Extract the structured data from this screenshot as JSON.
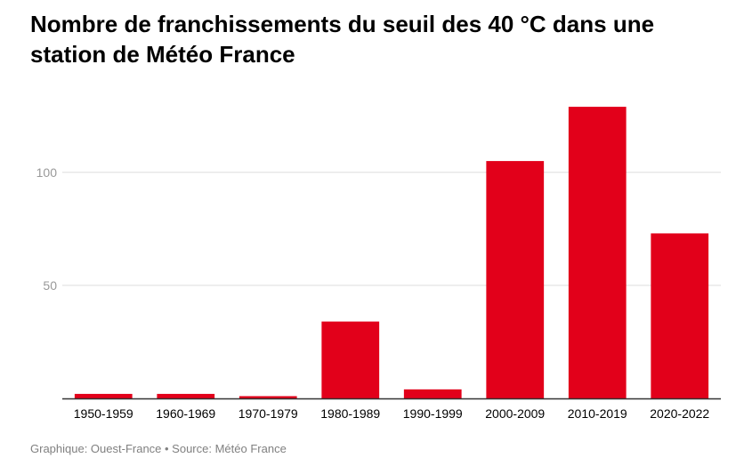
{
  "chart_data": {
    "type": "bar",
    "title": "Nombre de franchissements du seuil des 40 °C dans une station de Météo France",
    "xlabel": "",
    "ylabel": "",
    "categories": [
      "1950-1959",
      "1960-1969",
      "1970-1979",
      "1980-1989",
      "1990-1999",
      "2000-2009",
      "2010-2019",
      "2020-2022"
    ],
    "values": [
      2,
      2,
      1,
      34,
      4,
      105,
      129,
      73
    ],
    "ylim": [
      0,
      130
    ],
    "yticks": [
      50,
      100
    ],
    "grid": true,
    "bar_color": "#e2001a",
    "gridline_color": "#dddddd",
    "axis_label_color": "#999999"
  },
  "footer": {
    "source": "Graphique: Ouest-France • Source: Météo France"
  }
}
